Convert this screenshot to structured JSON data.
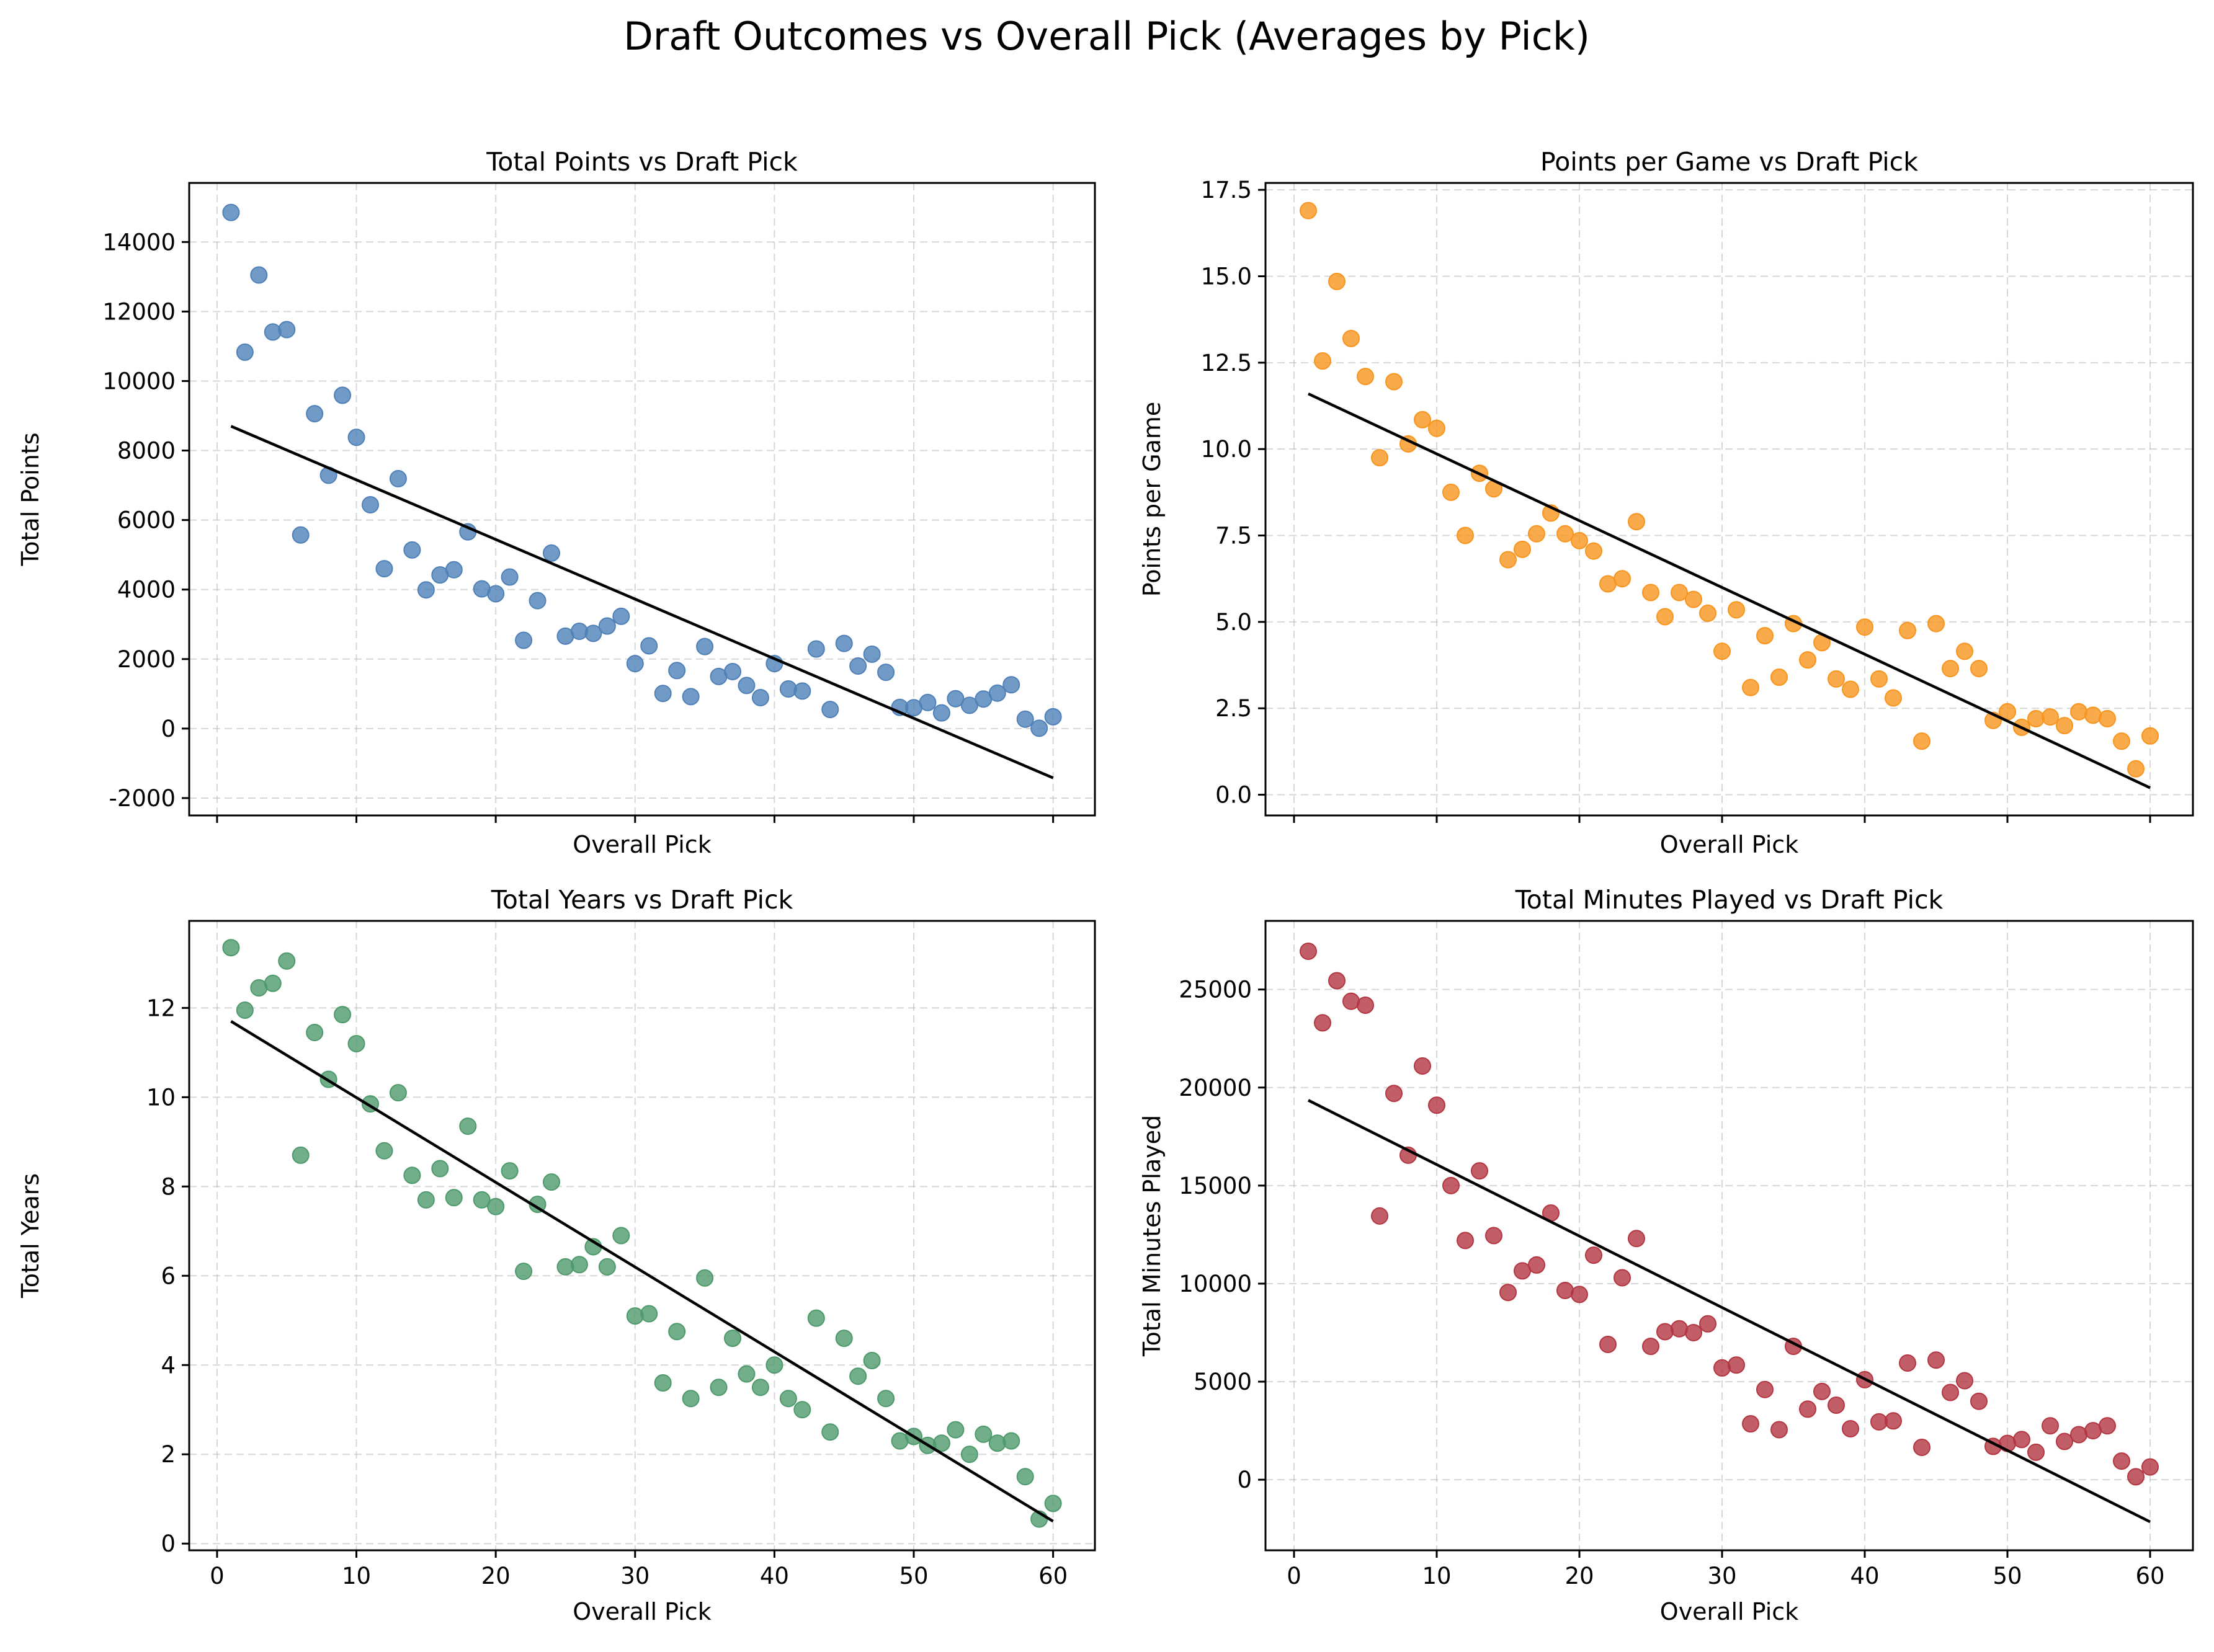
{
  "suptitle": "Draft Outcomes vs Overall Pick (Averages by Pick)",
  "chart_data": [
    {
      "type": "scatter",
      "title": "Total Points vs Draft Pick",
      "xlabel": "Overall Pick",
      "ylabel": "Total Points",
      "color": "#4f81b8",
      "show_xticklabels": false,
      "xlim": [
        -2.0,
        63.0
      ],
      "ylim": [
        -2500,
        15700
      ],
      "xticks": [
        0,
        10,
        20,
        30,
        40,
        50,
        60
      ],
      "yticks": [
        -2000,
        0,
        2000,
        4000,
        6000,
        8000,
        10000,
        12000,
        14000
      ],
      "grid": true,
      "x": [
        1,
        2,
        3,
        4,
        5,
        6,
        7,
        8,
        9,
        10,
        11,
        12,
        13,
        14,
        15,
        16,
        17,
        18,
        19,
        20,
        21,
        22,
        23,
        24,
        25,
        26,
        27,
        28,
        29,
        30,
        31,
        32,
        33,
        34,
        35,
        36,
        37,
        38,
        39,
        40,
        41,
        42,
        43,
        44,
        45,
        46,
        47,
        48,
        49,
        50,
        51,
        52,
        53,
        54,
        55,
        56,
        57,
        58,
        59,
        60
      ],
      "y": [
        14850,
        10830,
        13050,
        11410,
        11480,
        5570,
        9060,
        7290,
        9590,
        8380,
        6440,
        4600,
        7190,
        5140,
        3990,
        4420,
        4570,
        5660,
        4020,
        3880,
        4360,
        2540,
        3680,
        5050,
        2660,
        2800,
        2740,
        2950,
        3230,
        1870,
        2380,
        1010,
        1670,
        920,
        2360,
        1500,
        1640,
        1240,
        890,
        1870,
        1140,
        1080,
        2290,
        550,
        2450,
        1800,
        2140,
        1620,
        610,
        600,
        750,
        450,
        860,
        670,
        850,
        1020,
        1260,
        270,
        10,
        340
      ],
      "trend": [
        [
          1,
          8700
        ],
        [
          60,
          -1420
        ]
      ]
    },
    {
      "type": "scatter",
      "title": "Points per Game vs Draft Pick",
      "xlabel": "Overall Pick",
      "ylabel": "Points per Game",
      "color": "#f7951e",
      "show_xticklabels": false,
      "xlim": [
        -2.0,
        63.0
      ],
      "ylim": [
        -0.6,
        17.7
      ],
      "xticks": [
        0,
        10,
        20,
        30,
        40,
        50,
        60
      ],
      "yticks": [
        0.0,
        2.5,
        5.0,
        7.5,
        10.0,
        12.5,
        15.0,
        17.5
      ],
      "ytick_labels": [
        "0.0",
        "2.5",
        "5.0",
        "7.5",
        "10.0",
        "12.5",
        "15.0",
        "17.5"
      ],
      "grid": true,
      "x": [
        1,
        2,
        3,
        4,
        5,
        6,
        7,
        8,
        9,
        10,
        11,
        12,
        13,
        14,
        15,
        16,
        17,
        18,
        19,
        20,
        21,
        22,
        23,
        24,
        25,
        26,
        27,
        28,
        29,
        30,
        31,
        32,
        33,
        34,
        35,
        36,
        37,
        38,
        39,
        40,
        41,
        42,
        43,
        44,
        45,
        46,
        47,
        48,
        49,
        50,
        51,
        52,
        53,
        54,
        55,
        56,
        57,
        58,
        59,
        60
      ],
      "y": [
        16.9,
        12.55,
        14.85,
        13.2,
        12.1,
        9.75,
        11.95,
        10.15,
        10.85,
        10.6,
        8.75,
        7.5,
        9.3,
        8.85,
        6.8,
        7.1,
        7.55,
        8.15,
        7.55,
        7.35,
        7.05,
        6.1,
        6.25,
        7.9,
        5.85,
        5.15,
        5.85,
        5.65,
        5.25,
        4.15,
        5.35,
        3.1,
        4.6,
        3.4,
        4.95,
        3.9,
        4.4,
        3.35,
        3.05,
        4.85,
        3.35,
        2.8,
        4.75,
        1.55,
        4.95,
        3.65,
        4.15,
        3.65,
        2.15,
        2.4,
        1.95,
        2.2,
        2.25,
        2.0,
        2.4,
        2.3,
        2.2,
        1.55,
        0.75,
        1.7
      ],
      "trend": [
        [
          1,
          11.6
        ],
        [
          60,
          0.2
        ]
      ]
    },
    {
      "type": "scatter",
      "title": "Total Years vs Draft Pick",
      "xlabel": "Overall Pick",
      "ylabel": "Total Years",
      "color": "#4e9a6c",
      "show_xticklabels": true,
      "xlim": [
        -2.0,
        63.0
      ],
      "ylim": [
        -0.15,
        13.95
      ],
      "xticks": [
        0,
        10,
        20,
        30,
        40,
        50,
        60
      ],
      "yticks": [
        0,
        2,
        4,
        6,
        8,
        10,
        12
      ],
      "grid": true,
      "x": [
        1,
        2,
        3,
        4,
        5,
        6,
        7,
        8,
        9,
        10,
        11,
        12,
        13,
        14,
        15,
        16,
        17,
        18,
        19,
        20,
        21,
        22,
        23,
        24,
        25,
        26,
        27,
        28,
        29,
        30,
        31,
        32,
        33,
        34,
        35,
        36,
        37,
        38,
        39,
        40,
        41,
        42,
        43,
        44,
        45,
        46,
        47,
        48,
        49,
        50,
        51,
        52,
        53,
        54,
        55,
        56,
        57,
        58,
        59,
        60
      ],
      "y": [
        13.35,
        11.95,
        12.45,
        12.55,
        13.05,
        8.7,
        11.45,
        10.4,
        11.85,
        11.2,
        9.85,
        8.8,
        10.1,
        8.25,
        7.7,
        8.4,
        7.75,
        9.35,
        7.7,
        7.55,
        8.35,
        6.1,
        7.6,
        8.1,
        6.2,
        6.25,
        6.65,
        6.2,
        6.9,
        5.1,
        5.15,
        3.6,
        4.75,
        3.25,
        5.95,
        3.5,
        4.6,
        3.8,
        3.5,
        4.0,
        3.25,
        3.0,
        5.05,
        2.5,
        4.6,
        3.75,
        4.1,
        3.25,
        2.3,
        2.4,
        2.2,
        2.25,
        2.55,
        2.0,
        2.45,
        2.25,
        2.3,
        1.5,
        0.55,
        0.9
      ],
      "trend": [
        [
          1,
          11.7
        ],
        [
          60,
          0.5
        ]
      ]
    },
    {
      "type": "scatter",
      "title": "Total Minutes Played vs Draft Pick",
      "xlabel": "Overall Pick",
      "ylabel": "Total Minutes Played",
      "color": "#b33641",
      "show_xticklabels": true,
      "xlim": [
        -2.0,
        63.0
      ],
      "ylim": [
        -3600,
        28500
      ],
      "xticks": [
        0,
        10,
        20,
        30,
        40,
        50,
        60
      ],
      "yticks": [
        0,
        5000,
        10000,
        15000,
        20000,
        25000
      ],
      "grid": true,
      "x": [
        1,
        2,
        3,
        4,
        5,
        6,
        7,
        8,
        9,
        10,
        11,
        12,
        13,
        14,
        15,
        16,
        17,
        18,
        19,
        20,
        21,
        22,
        23,
        24,
        25,
        26,
        27,
        28,
        29,
        30,
        31,
        32,
        33,
        34,
        35,
        36,
        37,
        38,
        39,
        40,
        41,
        42,
        43,
        44,
        45,
        46,
        47,
        48,
        49,
        50,
        51,
        52,
        53,
        54,
        55,
        56,
        57,
        58,
        59,
        60
      ],
      "y": [
        26950,
        23300,
        25450,
        24400,
        24200,
        13450,
        19700,
        16550,
        21100,
        19100,
        15000,
        12200,
        15750,
        12450,
        9550,
        10650,
        10950,
        13600,
        9650,
        9450,
        11450,
        6900,
        10300,
        12300,
        6800,
        7550,
        7700,
        7500,
        7950,
        5700,
        5850,
        2850,
        4600,
        2550,
        6800,
        3600,
        4500,
        3800,
        2600,
        5100,
        2950,
        3000,
        5950,
        1650,
        6100,
        4450,
        5050,
        4000,
        1700,
        1850,
        2050,
        1400,
        2750,
        1950,
        2300,
        2500,
        2750,
        950,
        150,
        650
      ],
      "trend": [
        [
          1,
          19350
        ],
        [
          60,
          -2150
        ]
      ]
    }
  ]
}
